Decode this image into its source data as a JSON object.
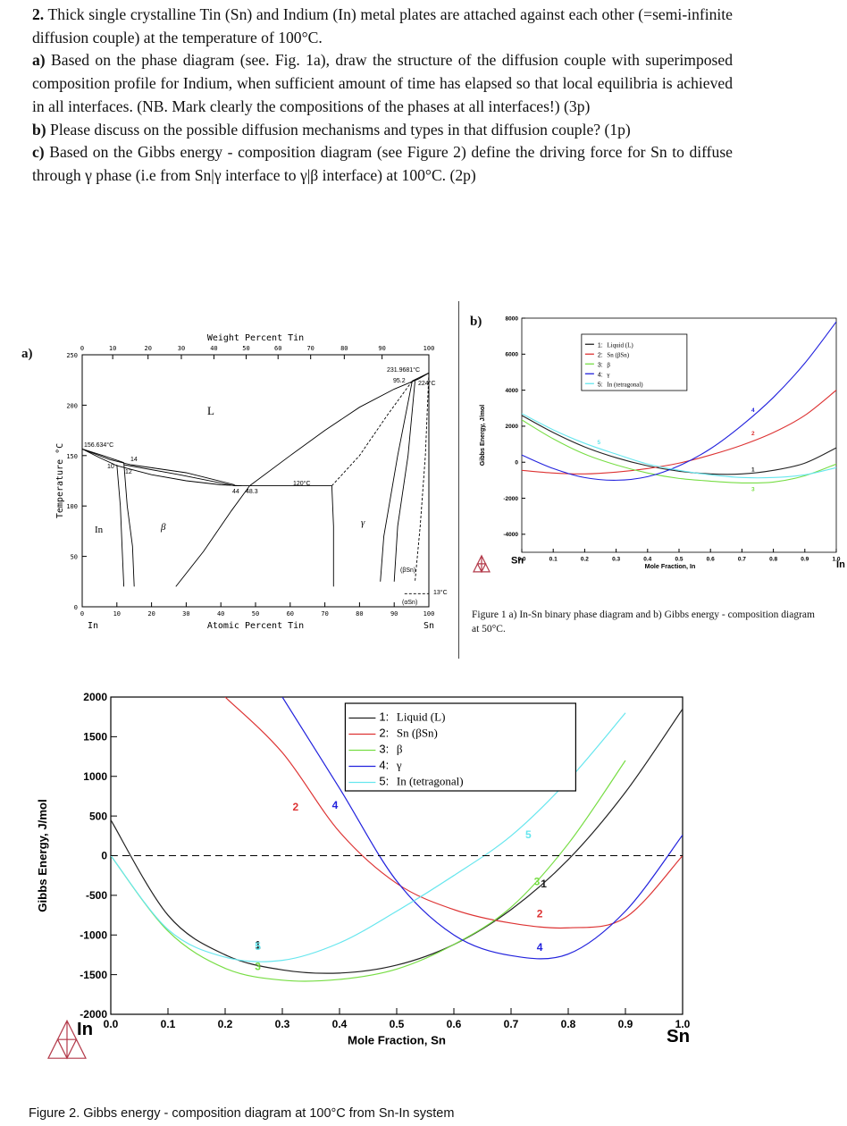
{
  "question": {
    "number": "2.",
    "intro": " Thick single crystalline Tin (Sn) and Indium (In) metal plates are attached against each other (=semi-infinite diffusion couple) at the temperature of 100°C.",
    "parts": [
      {
        "label": "a)",
        "text": " Based on the phase diagram (see. Fig. 1a), draw the structure of the diffusion couple with superimposed composition profile for Indium, when sufficient amount of time has elapsed so that local equilibria is achieved in all interfaces. (NB. Mark clearly the compositions of the phases at all interfaces!) (3p)"
      },
      {
        "label": "b)",
        "text": " Please discuss on the possible diffusion mechanisms and types in that diffusion couple? (1p)"
      },
      {
        "label": "c)",
        "text": " Based on the Gibbs energy - composition diagram (see Figure 2) define the driving force for Sn to diffuse through γ phase (i.e from Sn|γ interface to γ|β interface) at 100°C. (2p)"
      }
    ]
  },
  "fig1a": {
    "panel_label": "a)",
    "top_axis_title": "Weight Percent Tin",
    "bottom_axis_title": "Atomic Percent Tin",
    "y_axis_title": "Temperature °C",
    "left_element": "In",
    "right_element": "Sn",
    "x_ticks": [
      "0",
      "10",
      "20",
      "30",
      "40",
      "50",
      "60",
      "70",
      "80",
      "90",
      "100"
    ],
    "top_ticks": [
      "0",
      "10",
      "20",
      "30",
      "40",
      "50",
      "60",
      "70",
      "80",
      "90",
      "100"
    ],
    "y_ticks": [
      "0",
      "50",
      "100",
      "150",
      "200",
      "250"
    ],
    "labels": {
      "L": "L",
      "In": "In",
      "beta": "β",
      "gamma": "γ",
      "sn_melt": "231.9681°C",
      "in_melt": "156.634°C",
      "peritectic": "224°C",
      "val_95_2": "95.2",
      "eutectic_temp": "120°C",
      "val_44": "44",
      "val_48_3": "48.3",
      "val_10": "10",
      "val_12": "12",
      "val_14": "14",
      "beta_sn": "(βSn)",
      "alpha_sn": "(αSn)",
      "transition": "13°C"
    }
  },
  "fig1b": {
    "panel_label": "b)",
    "x_axis_title": "Mole Fraction, In",
    "y_axis_title": "Gibbs Energy,  J/mol",
    "left_element": "Sn",
    "right_element": "In",
    "x_ticks": [
      "0.0",
      "0.1",
      "0.2",
      "0.3",
      "0.4",
      "0.5",
      "0.6",
      "0.7",
      "0.8",
      "0.9",
      "1.0"
    ],
    "y_ticks": [
      "8000",
      "6000",
      "4000",
      "2000",
      "0",
      "-2000",
      "-4000"
    ],
    "legend": [
      {
        "num": "1:",
        "name": "Liquid (L)",
        "color": "#222222"
      },
      {
        "num": "2:",
        "name": "Sn (βSn)",
        "color": "#dd3333"
      },
      {
        "num": "3:",
        "name": "β",
        "color": "#77dd44"
      },
      {
        "num": "4:",
        "name": "γ",
        "color": "#2222dd"
      },
      {
        "num": "5:",
        "name": "In (tetragonal)",
        "color": "#66e6ee"
      }
    ],
    "curve_labels": [
      "1",
      "2",
      "3",
      "4",
      "5"
    ]
  },
  "caption1": "Figure 1 a) In-Sn binary phase diagram and b) Gibbs energy - composition diagram at 50°C.",
  "fig2": {
    "x_axis_title": "Mole Fraction, Sn",
    "y_axis_title": "Gibbs Energy,  J/mol",
    "left_element": "In",
    "right_element": "Sn",
    "x_ticks": [
      "0.0",
      "0.1",
      "0.2",
      "0.3",
      "0.4",
      "0.5",
      "0.6",
      "0.7",
      "0.8",
      "0.9",
      "1.0"
    ],
    "y_ticks": [
      "2000",
      "1500",
      "1000",
      "500",
      "0",
      "-500",
      "-1000",
      "-1500",
      "-2000"
    ],
    "legend": [
      {
        "num": "1:",
        "name": "Liquid (L)",
        "color": "#222222"
      },
      {
        "num": "2:",
        "name": "Sn (βSn)",
        "color": "#dd3333"
      },
      {
        "num": "3:",
        "name": "β",
        "color": "#77dd44"
      },
      {
        "num": "4:",
        "name": "γ",
        "color": "#2222dd"
      },
      {
        "num": "5:",
        "name": "In (tetragonal)",
        "color": "#66e6ee"
      }
    ],
    "curve_labels": [
      "1",
      "2",
      "3",
      "4",
      "5"
    ]
  },
  "caption2": "Figure 2. Gibbs energy - composition diagram at 100°C from Sn-In system",
  "chart_data": [
    {
      "type": "line",
      "title": "Gibbs energy - composition diagram at 50°C",
      "xlabel": "Mole Fraction, In",
      "ylabel": "Gibbs Energy, J/mol",
      "xlim": [
        0,
        1
      ],
      "ylim": [
        -5000,
        8000
      ],
      "x": [
        0.0,
        0.1,
        0.2,
        0.3,
        0.4,
        0.5,
        0.6,
        0.7,
        0.8,
        0.9,
        1.0
      ],
      "series": [
        {
          "name": "Liquid (L)",
          "values": [
            2600,
            1650,
            850,
            250,
            -200,
            -500,
            -650,
            -650,
            -450,
            -50,
            800
          ]
        },
        {
          "name": "Sn (βSn)",
          "values": [
            -450,
            -600,
            -650,
            -550,
            -350,
            -50,
            400,
            950,
            1650,
            2600,
            4000
          ]
        },
        {
          "name": "β",
          "values": [
            2350,
            1300,
            450,
            -150,
            -600,
            -900,
            -1050,
            -1150,
            -1100,
            -750,
            -100
          ]
        },
        {
          "name": "γ",
          "values": [
            400,
            -350,
            -850,
            -1000,
            -800,
            -200,
            750,
            2050,
            3600,
            5500,
            7800
          ]
        },
        {
          "name": "In (tetragonal)",
          "values": [
            2700,
            1800,
            1050,
            450,
            -100,
            -450,
            -700,
            -850,
            -850,
            -700,
            -300
          ]
        }
      ]
    },
    {
      "type": "line",
      "title": "Gibbs energy - composition diagram at 100°C from Sn-In system",
      "xlabel": "Mole Fraction, Sn",
      "ylabel": "Gibbs Energy, J/mol",
      "xlim": [
        0,
        1
      ],
      "ylim": [
        -2000,
        2000
      ],
      "x": [
        0.0,
        0.1,
        0.2,
        0.3,
        0.4,
        0.5,
        0.6,
        0.7,
        0.8,
        0.9,
        1.0
      ],
      "series": [
        {
          "name": "Liquid (L)",
          "values": [
            450,
            -750,
            -1250,
            -1440,
            -1480,
            -1380,
            -1120,
            -680,
            -50,
            800,
            1850
          ]
        },
        {
          "name": "Sn (βSn)",
          "values": [
            null,
            null,
            2000,
            1300,
            300,
            -350,
            -680,
            -850,
            -910,
            -780,
            0
          ]
        },
        {
          "name": "β",
          "values": [
            0,
            -950,
            -1420,
            -1570,
            -1560,
            -1430,
            -1120,
            -650,
            150,
            1200,
            null
          ]
        },
        {
          "name": "γ",
          "values": [
            null,
            null,
            null,
            2000,
            850,
            -320,
            -1000,
            -1260,
            -1240,
            -700,
            260
          ]
        },
        {
          "name": "In (tetragonal)",
          "values": [
            0,
            -930,
            -1280,
            -1320,
            -1100,
            -700,
            -250,
            250,
            950,
            1800,
            null
          ]
        },
        {
          "name": "zero reference",
          "values": [
            0,
            0,
            0,
            0,
            0,
            0,
            0,
            0,
            0,
            0,
            0
          ]
        }
      ]
    }
  ]
}
